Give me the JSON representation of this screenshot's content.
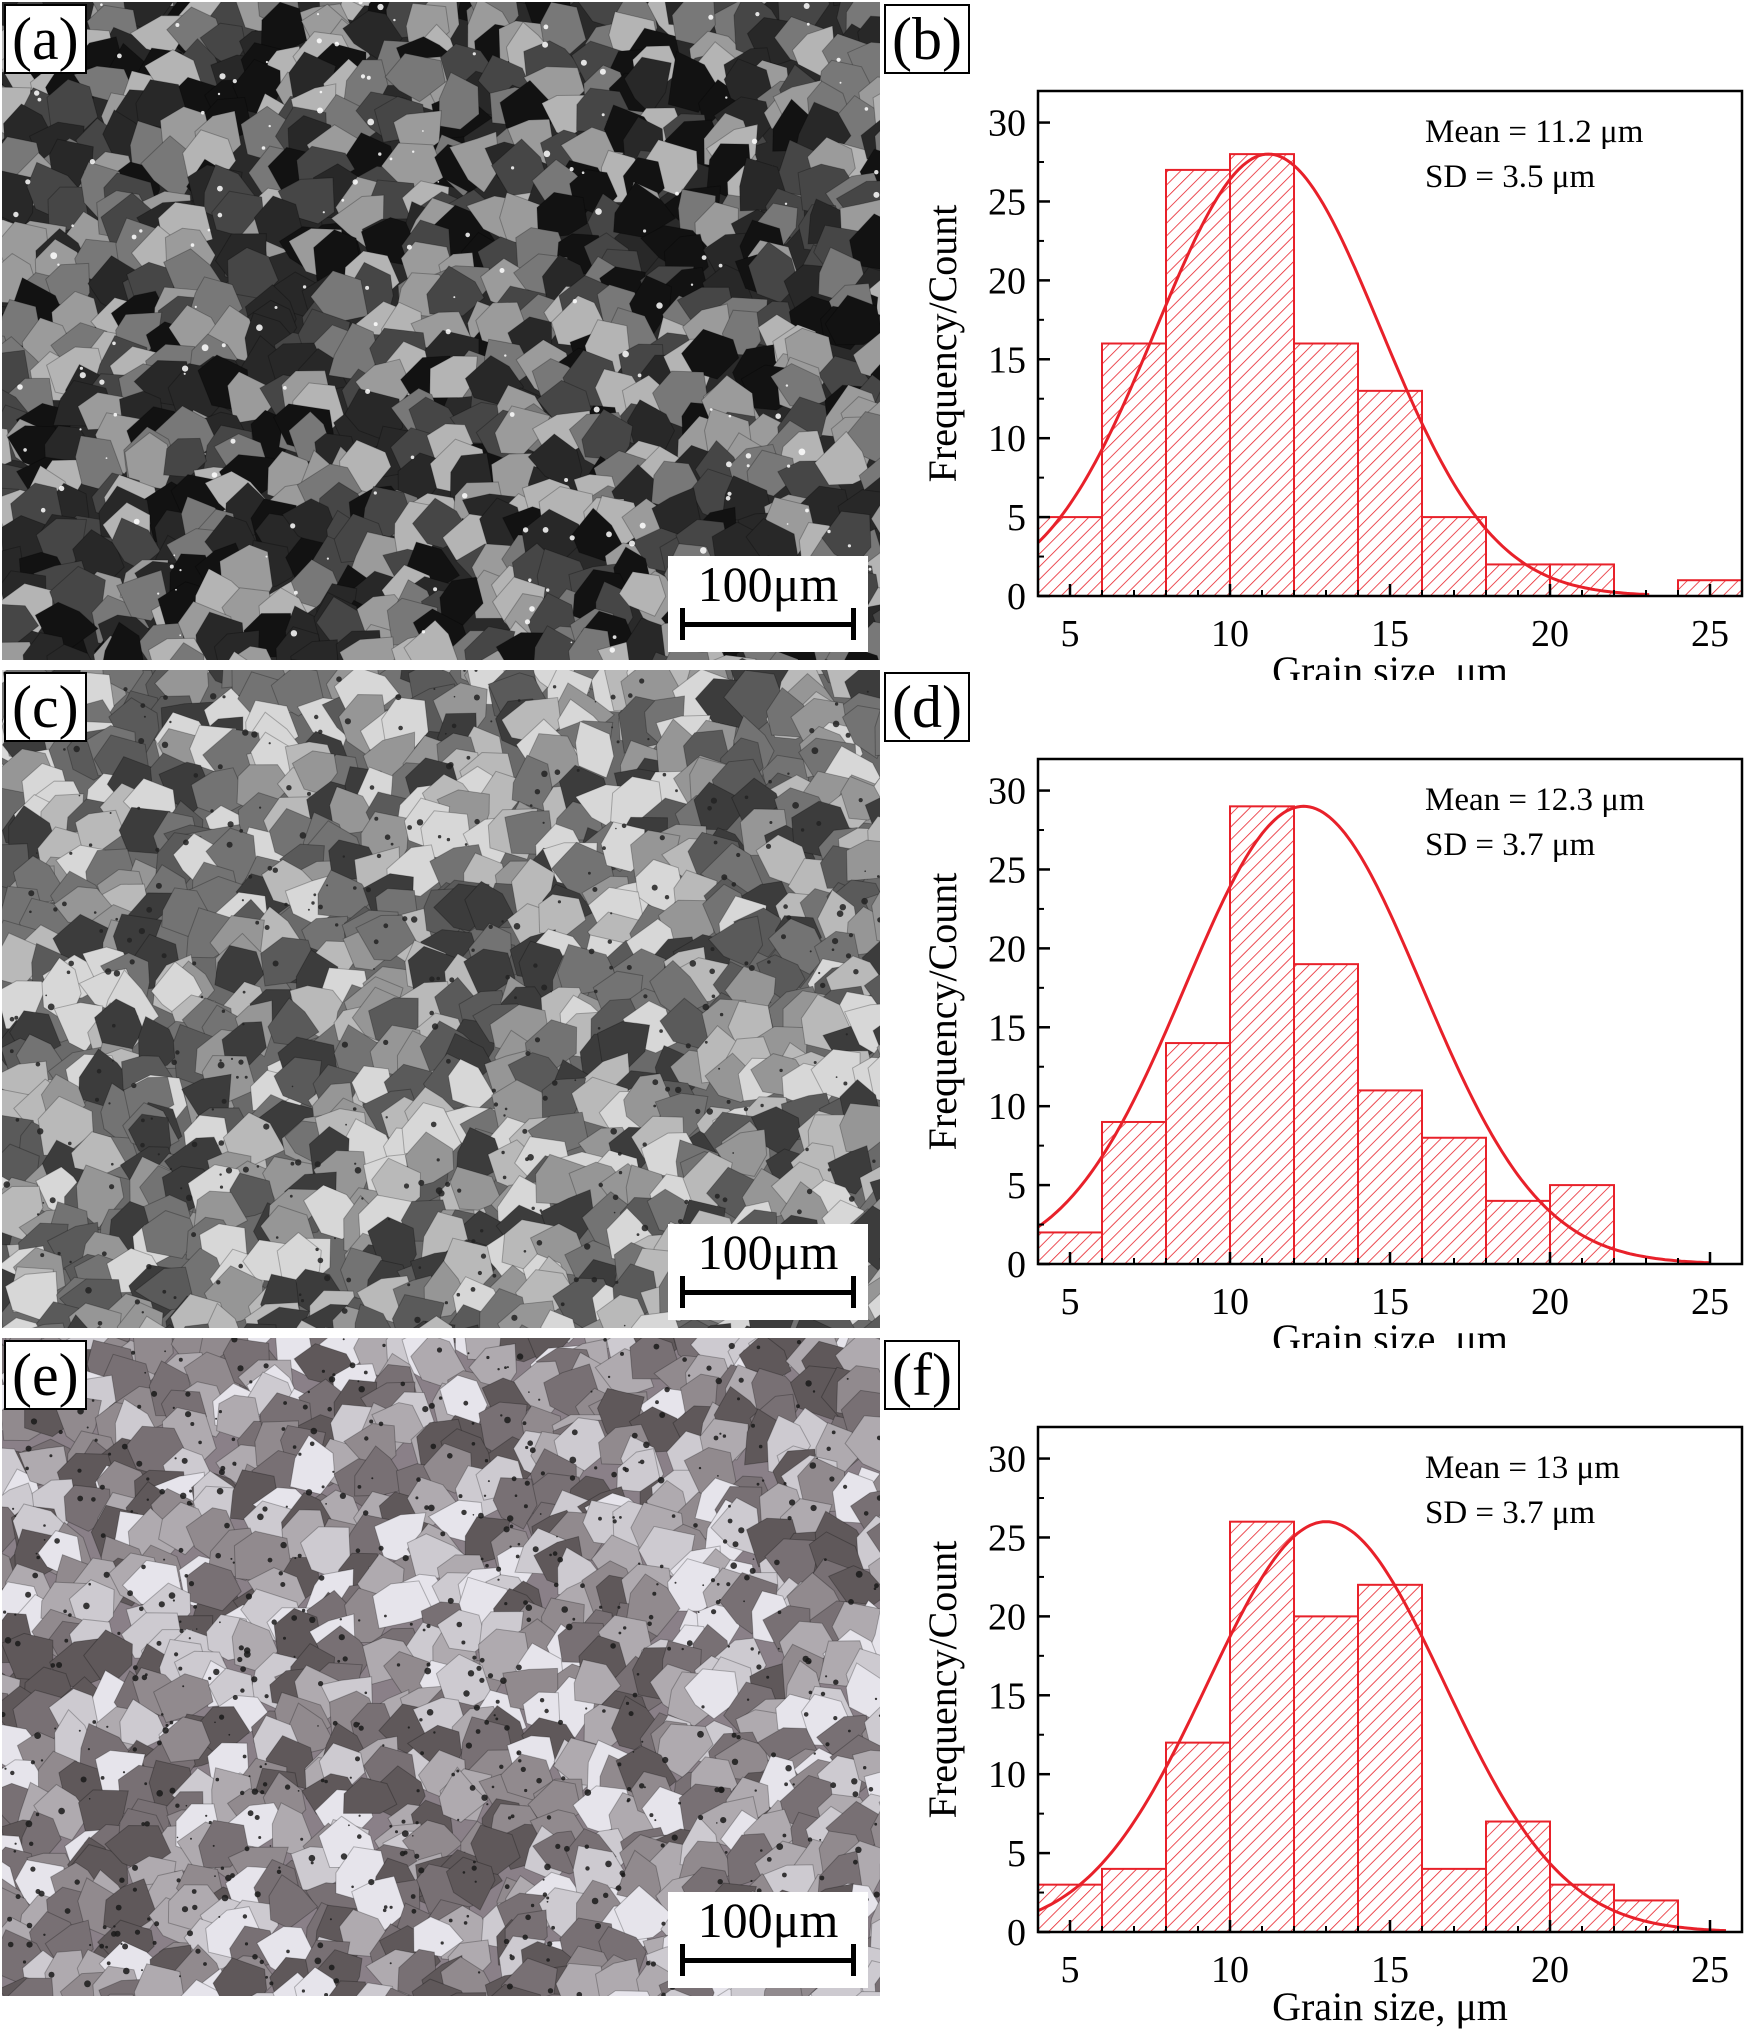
{
  "panels": [
    {
      "label": "(a)",
      "scale_bar": "100μm"
    },
    {
      "label": "(b)"
    },
    {
      "label": "(c)",
      "scale_bar": "100μm"
    },
    {
      "label": "(d)"
    },
    {
      "label": "(e)",
      "scale_bar": "100μm"
    },
    {
      "label": "(f)"
    }
  ],
  "chart_data": [
    {
      "type": "bar",
      "panel": "(b)",
      "xlabel": "Grain size, μm",
      "ylabel": "Frequency/Count",
      "xlim": [
        4,
        26
      ],
      "ylim": [
        0,
        32
      ],
      "xticks": [
        5,
        10,
        15,
        20,
        25
      ],
      "yticks": [
        0,
        5,
        10,
        15,
        20,
        25,
        30
      ],
      "bin_width": 2,
      "bin_starts": [
        4,
        6,
        8,
        10,
        12,
        14,
        16,
        18,
        20,
        22,
        24
      ],
      "counts": [
        5,
        16,
        27,
        28,
        16,
        13,
        5,
        2,
        2,
        0,
        1
      ],
      "annotations": [
        "Mean = 11.2 μm",
        "SD = 3.5 μm"
      ],
      "fit": {
        "type": "normal",
        "mean": 11.2,
        "sd": 3.5,
        "peak": 28
      },
      "bar_color": "#e8212a",
      "fit_color": "#e8212a"
    },
    {
      "type": "bar",
      "panel": "(d)",
      "xlabel": "Grain size, μm",
      "ylabel": "Frequency/Count",
      "xlim": [
        4,
        26
      ],
      "ylim": [
        0,
        32
      ],
      "xticks": [
        5,
        10,
        15,
        20,
        25
      ],
      "yticks": [
        0,
        5,
        10,
        15,
        20,
        25,
        30
      ],
      "bin_width": 2,
      "bin_starts": [
        4,
        6,
        8,
        10,
        12,
        14,
        16,
        18,
        20
      ],
      "counts": [
        2,
        9,
        14,
        29,
        19,
        11,
        8,
        4,
        5
      ],
      "annotations": [
        "Mean = 12.3 μm",
        "SD = 3.7 μm"
      ],
      "fit": {
        "type": "normal",
        "mean": 12.3,
        "sd": 3.7,
        "peak": 29
      },
      "bar_color": "#e8212a",
      "fit_color": "#e8212a"
    },
    {
      "type": "bar",
      "panel": "(f)",
      "xlabel": "Grain size, μm",
      "ylabel": "Frequency/Count",
      "xlim": [
        4,
        26
      ],
      "ylim": [
        0,
        32
      ],
      "xticks": [
        5,
        10,
        15,
        20,
        25
      ],
      "yticks": [
        0,
        5,
        10,
        15,
        20,
        25,
        30
      ],
      "bin_width": 2,
      "bin_starts": [
        4,
        6,
        8,
        10,
        12,
        14,
        16,
        18,
        20,
        22
      ],
      "counts": [
        3,
        4,
        12,
        26,
        20,
        22,
        4,
        7,
        3,
        2
      ],
      "annotations": [
        "Mean = 13 μm",
        "SD = 3.7 μm"
      ],
      "fit": {
        "type": "normal",
        "mean": 13,
        "sd": 3.7,
        "peak": 26
      },
      "bar_color": "#e8212a",
      "fit_color": "#e8212a"
    }
  ]
}
